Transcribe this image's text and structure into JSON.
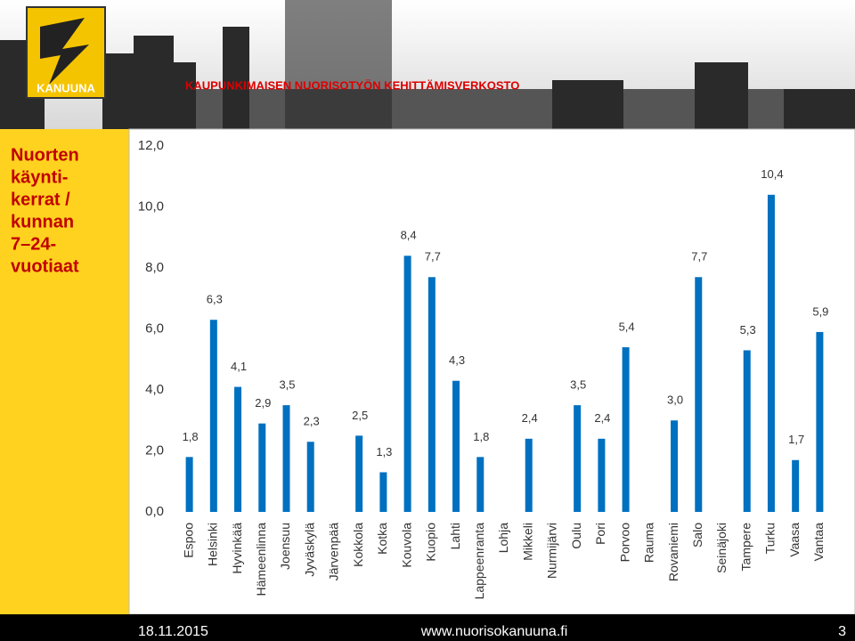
{
  "header": {
    "logo_text": "KANUUNA",
    "network_name": "KAUPUNKIMAISEN NUORISOTYÖN KEHITTÄMISVERKOSTO"
  },
  "sidebar_title": [
    "Nuorten",
    "käynti-",
    "kerrat /",
    "kunnan",
    "7–24-",
    "vuotiaat"
  ],
  "chart_data": {
    "type": "bar",
    "categories": [
      "Espoo",
      "Helsinki",
      "Hyvinkää",
      "Hämeenlinna",
      "Joensuu",
      "Jyväskylä",
      "Järvenpää",
      "Kokkola",
      "Kotka",
      "Kouvola",
      "Kuopio",
      "Lahti",
      "Lappeenranta",
      "Lohja",
      "Mikkeli",
      "Nurmijärvi",
      "Oulu",
      "Pori",
      "Porvoo",
      "Rauma",
      "Rovaniemi",
      "Salo",
      "Seinäjoki",
      "Tampere",
      "Turku",
      "Vaasa",
      "Vantaa"
    ],
    "values": [
      1.8,
      6.3,
      4.1,
      2.9,
      3.5,
      2.3,
      null,
      2.5,
      1.3,
      8.4,
      7.7,
      4.3,
      1.8,
      null,
      2.4,
      null,
      3.5,
      2.4,
      5.4,
      null,
      3.0,
      7.7,
      null,
      5.3,
      10.4,
      1.7,
      5.9
    ],
    "value_labels": [
      "1,8",
      "6,3",
      "4,1",
      "2,9",
      "3,5",
      "2,3",
      null,
      "2,5",
      "1,3",
      "8,4",
      "7,7",
      "4,3",
      "1,8",
      null,
      "2,4",
      null,
      "3,5",
      "2,4",
      "5,4",
      null,
      "3,0",
      "7,7",
      null,
      "5,3",
      "10,4",
      "1,7",
      "5,9"
    ],
    "color": "#0070c0",
    "ylim": [
      0,
      12
    ],
    "yticks": [
      {
        "value": 0,
        "label": "0,0"
      },
      {
        "value": 2,
        "label": "2,0"
      },
      {
        "value": 4,
        "label": "4,0"
      },
      {
        "value": 6,
        "label": "6,0"
      },
      {
        "value": 8,
        "label": "8,0"
      },
      {
        "value": 10,
        "label": "10,0"
      },
      {
        "value": 12,
        "label": "12,0"
      }
    ],
    "grid": false
  },
  "footer": {
    "date": "18.11.2015",
    "url": "www.nuorisokanuuna.fi",
    "page": "3"
  }
}
